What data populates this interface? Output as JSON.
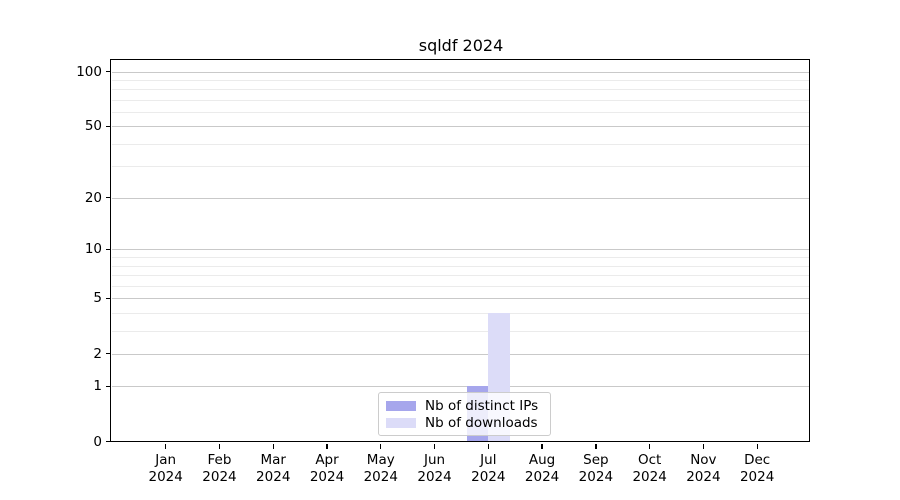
{
  "chart_data": {
    "type": "bar",
    "title": "sqldf 2024",
    "categories": [
      "Jan 2024",
      "Feb 2024",
      "Mar 2024",
      "Apr 2024",
      "May 2024",
      "Jun 2024",
      "Jul 2024",
      "Aug 2024",
      "Sep 2024",
      "Oct 2024",
      "Nov 2024",
      "Dec 2024"
    ],
    "series": [
      {
        "name": "Nb of distinct IPs",
        "color": "#a6a6ec",
        "values": [
          0,
          0,
          0,
          0,
          0,
          0,
          1,
          0,
          0,
          0,
          0,
          0
        ]
      },
      {
        "name": "Nb of downloads",
        "color": "#dcdcf8",
        "values": [
          0,
          0,
          0,
          0,
          0,
          0,
          4,
          0,
          0,
          0,
          0,
          0
        ]
      }
    ],
    "xlabel": "",
    "ylabel": "",
    "yscale": "log1p",
    "ylim": [
      0,
      100
    ],
    "yticks": [
      0,
      1,
      2,
      5,
      10,
      20,
      50,
      100
    ],
    "minor_gridlines": [
      3,
      4,
      6,
      7,
      8,
      9,
      30,
      40,
      60,
      70,
      80,
      90
    ],
    "grid": "on",
    "legend_position": "lower center",
    "colors": {
      "spine": "#000000",
      "major_grid": "#c9c9c9",
      "minor_grid": "#ebebeb",
      "background": "#ffffff"
    }
  }
}
